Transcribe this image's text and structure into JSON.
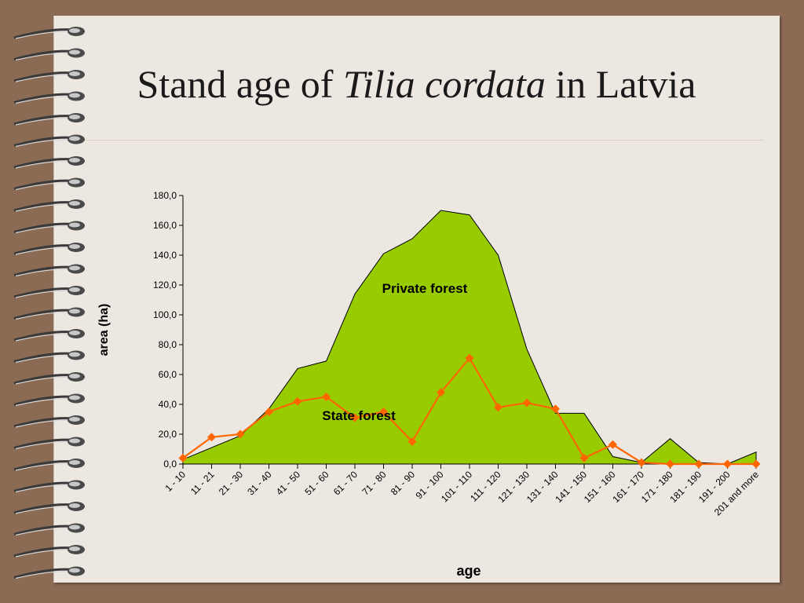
{
  "slide": {
    "title_prefix": "Stand age of ",
    "title_italic": "Tilia cordata",
    "title_suffix": " in Latvia"
  },
  "chart_data": {
    "type": "area",
    "title": "",
    "xlabel": "age",
    "ylabel": "area (ha)",
    "ylim": [
      0,
      180
    ],
    "yticks": [
      "0,0",
      "20,0",
      "40,0",
      "60,0",
      "80,0",
      "100,0",
      "120,0",
      "140,0",
      "160,0",
      "180,0"
    ],
    "categories": [
      "1 - 10",
      "11 - 21",
      "21 - 30",
      "31 - 40",
      "41 - 50",
      "51 - 60",
      "61 - 70",
      "71 - 80",
      "81 - 90",
      "91 - 100",
      "101 - 110",
      "111 - 120",
      "121 - 130",
      "131 - 140",
      "141 - 150",
      "151 - 160",
      "161 - 170",
      "171 - 180",
      "181 - 190",
      "191 - 200",
      "201 and more"
    ],
    "series": [
      {
        "name": "Private forest",
        "type": "area",
        "color": "#99cc00",
        "values": [
          3,
          11,
          19,
          37,
          64,
          69,
          114,
          141,
          151,
          170,
          167,
          140,
          77,
          34,
          34,
          5,
          1,
          17,
          1,
          0,
          8
        ]
      },
      {
        "name": "State forest",
        "type": "line",
        "color": "#ff6600",
        "values": [
          4,
          18,
          20,
          35,
          42,
          45,
          31,
          35,
          15,
          48,
          71,
          38,
          41,
          37,
          4,
          13,
          1,
          0,
          0,
          0,
          0
        ]
      }
    ],
    "grid": false,
    "legend": "inline labels"
  }
}
